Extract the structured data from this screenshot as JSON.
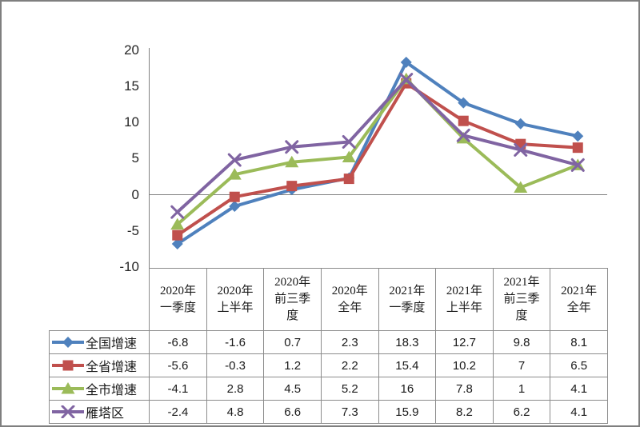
{
  "frame": {
    "background": "#ffffff",
    "border_color": "#7f7f7f",
    "axis_color": "#808080",
    "grid_color": "#8c8c8c",
    "text_color": "#262626"
  },
  "chart_data": {
    "type": "line",
    "title": "",
    "xlabel": "",
    "ylabel": "",
    "categories": [
      "2020年一季度",
      "2020年上半年",
      "2020年前三季度",
      "2020年全年",
      "2021年一季度",
      "2021年上半年",
      "2021年前三季度",
      "2021年全年"
    ],
    "series": [
      {
        "name": "全国增速",
        "marker": "diamond",
        "color": "#4F81BD",
        "values": [
          -6.8,
          -1.6,
          0.7,
          2.3,
          18.3,
          12.7,
          9.8,
          8.1
        ]
      },
      {
        "name": "全省增速",
        "marker": "square",
        "color": "#C0504D",
        "values": [
          -5.6,
          -0.3,
          1.2,
          2.2,
          15.4,
          10.2,
          7,
          6.5
        ]
      },
      {
        "name": "全市增速",
        "marker": "triangle",
        "color": "#9BBB59",
        "values": [
          -4.1,
          2.8,
          4.5,
          5.2,
          16,
          7.8,
          1,
          4.1
        ]
      },
      {
        "name": "雁塔区",
        "marker": "x",
        "color": "#8064A2",
        "values": [
          -2.4,
          4.8,
          6.6,
          7.3,
          15.9,
          8.2,
          6.2,
          4.1
        ]
      }
    ],
    "yticks": [
      20,
      15,
      10,
      5,
      0,
      -5,
      -10
    ],
    "ylim": [
      -10,
      20
    ],
    "grid": "zero-line-only",
    "legend_position": "data-table-left-column"
  },
  "table": {
    "columns": [
      "2020年\n一季度",
      "2020年\n上半年",
      "2020年\n前三季\n度",
      "2020年\n全年",
      "2021年\n一季度",
      "2021年\n上半年",
      "2021年\n前三季\n度",
      "2021年\n全年"
    ]
  }
}
